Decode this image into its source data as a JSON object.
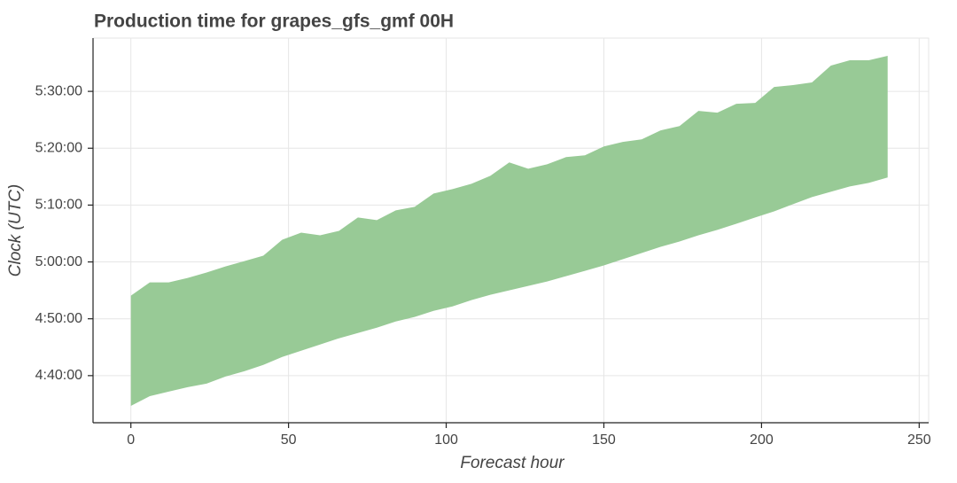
{
  "chart_data": {
    "type": "band",
    "title": "Production time for grapes_gfs_gmf 00H",
    "x_label": "Forecast hour",
    "y_label": "Clock (UTC)",
    "color": "#98ca96",
    "grid": true,
    "x": [
      0,
      6,
      12,
      18,
      24,
      30,
      36,
      42,
      48,
      54,
      60,
      66,
      72,
      78,
      84,
      90,
      96,
      102,
      108,
      114,
      120,
      126,
      132,
      138,
      144,
      150,
      156,
      162,
      168,
      174,
      180,
      186,
      192,
      198,
      204,
      210,
      216,
      222,
      228,
      234,
      240
    ],
    "series": [
      {
        "values": [
          16481,
          16584,
          16631,
          16678,
          16716,
          16791,
          16847,
          16913,
          16997,
          17063,
          17128,
          17194,
          17250,
          17306,
          17372,
          17419,
          17484,
          17531,
          17597,
          17653,
          17700,
          17747,
          17794,
          17850,
          17906,
          17963,
          18028,
          18094,
          18159,
          18216,
          18281,
          18338,
          18403,
          18469,
          18534,
          18609,
          18684,
          18741,
          18797,
          18834,
          18891
        ]
      },
      {
        "values": [
          17644,
          17784,
          17784,
          17831,
          17888,
          17953,
          18009,
          18066,
          18234,
          18309,
          18281,
          18328,
          18469,
          18441,
          18544,
          18581,
          18722,
          18769,
          18825,
          18909,
          19050,
          18984,
          19031,
          19106,
          19125,
          19219,
          19266,
          19294,
          19388,
          19434,
          19594,
          19575,
          19669,
          19678,
          19847,
          19866,
          19894,
          20072,
          20128,
          20128,
          20175
        ]
      }
    ],
    "xlim": [
      -12,
      253
    ],
    "xticks": [
      0,
      50,
      100,
      150,
      200,
      250
    ],
    "ylim": [
      16303,
      20362
    ],
    "yticks": [
      {
        "value": 16800,
        "label": "4:40:00"
      },
      {
        "value": 17400,
        "label": "4:50:00"
      },
      {
        "value": 18000,
        "label": "5:00:00"
      },
      {
        "value": 18600,
        "label": "5:10:00"
      },
      {
        "value": 19200,
        "label": "5:20:00"
      },
      {
        "value": 19800,
        "label": "5:30:00"
      }
    ]
  }
}
